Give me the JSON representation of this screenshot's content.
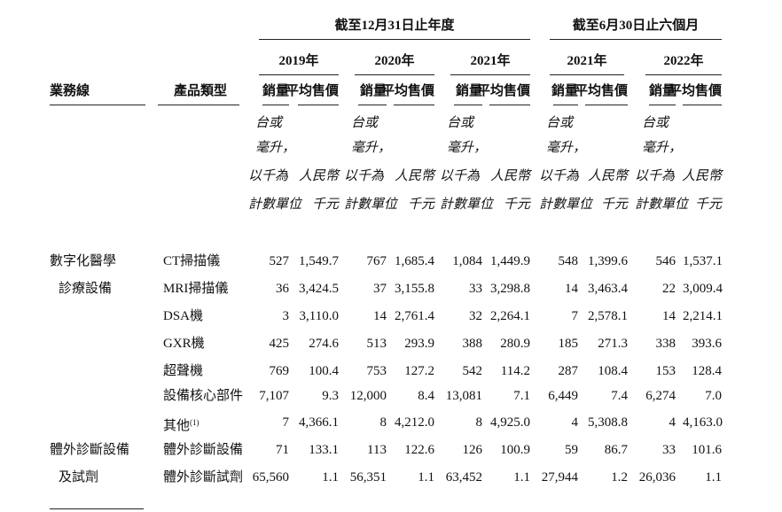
{
  "header": {
    "group_fy": "截至12月31日止年度",
    "group_six": "截至6月30日止六個月",
    "years": [
      "2019年",
      "2020年",
      "2021年",
      "2021年",
      "2022年"
    ],
    "col_business_line": "業務線",
    "col_product_type": "產品類型",
    "sub_qty": "銷量",
    "sub_price": "平均售價",
    "unit_qty": [
      "台或",
      "毫升，",
      "以千為",
      "計數單位"
    ],
    "unit_price": [
      "人民幣",
      "千元"
    ]
  },
  "business_lines": [
    {
      "lines": [
        "數字化醫學",
        "診療設備"
      ]
    },
    {
      "lines": [
        "體外診斷設備",
        "及試劑"
      ]
    }
  ],
  "rows": [
    {
      "product": "CT掃描儀",
      "note": "",
      "cells": [
        "527",
        "1,549.7",
        "767",
        "1,685.4",
        "1,084",
        "1,449.9",
        "548",
        "1,399.6",
        "546",
        "1,537.1"
      ]
    },
    {
      "product": "MRI掃描儀",
      "note": "",
      "cells": [
        "36",
        "3,424.5",
        "37",
        "3,155.8",
        "33",
        "3,298.8",
        "14",
        "3,463.4",
        "22",
        "3,009.4"
      ]
    },
    {
      "product": "DSA機",
      "note": "",
      "cells": [
        "3",
        "3,110.0",
        "14",
        "2,761.4",
        "32",
        "2,264.1",
        "7",
        "2,578.1",
        "14",
        "2,214.1"
      ]
    },
    {
      "product": "GXR機",
      "note": "",
      "cells": [
        "425",
        "274.6",
        "513",
        "293.9",
        "388",
        "280.9",
        "185",
        "271.3",
        "338",
        "393.6"
      ]
    },
    {
      "product": "超聲機",
      "note": "",
      "cells": [
        "769",
        "100.4",
        "753",
        "127.2",
        "542",
        "114.2",
        "287",
        "108.4",
        "153",
        "128.4"
      ]
    },
    {
      "product": "設備核心部件",
      "note": "",
      "cells": [
        "7,107",
        "9.3",
        "12,000",
        "8.4",
        "13,081",
        "7.1",
        "6,449",
        "7.4",
        "6,274",
        "7.0"
      ]
    },
    {
      "product": "其他",
      "note": "(1)",
      "cells": [
        "7",
        "4,366.1",
        "8",
        "4,212.0",
        "8",
        "4,925.0",
        "4",
        "5,308.8",
        "4",
        "4,163.0"
      ]
    },
    {
      "product": "體外診斷設備",
      "note": "",
      "cells": [
        "71",
        "133.1",
        "113",
        "122.6",
        "126",
        "100.9",
        "59",
        "86.7",
        "33",
        "101.6"
      ]
    },
    {
      "product": "體外診斷試劑",
      "note": "",
      "cells": [
        "65,560",
        "1.1",
        "56,351",
        "1.1",
        "63,452",
        "1.1",
        "27,944",
        "1.2",
        "26,036",
        "1.1"
      ]
    }
  ]
}
